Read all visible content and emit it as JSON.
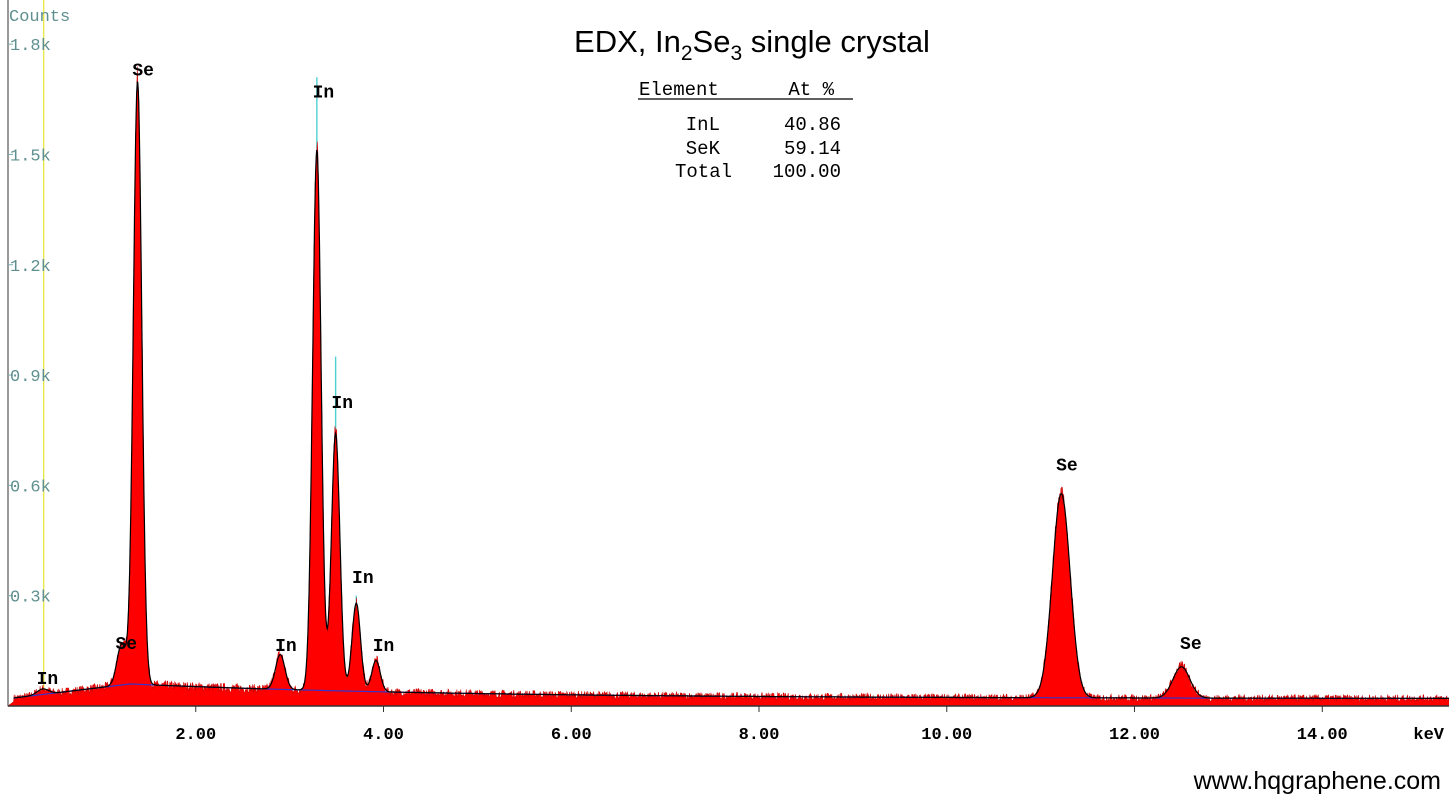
{
  "chart_data": {
    "type": "area",
    "title": "EDX, In2Se3 single crystal",
    "title_parts": {
      "a": "EDX, In",
      "s1": "2",
      "b": "Se",
      "s2": "3",
      "c": " single crystal"
    },
    "ylabel": "Counts",
    "xunit": "keV",
    "xlim": [
      0,
      15.35
    ],
    "ylim": [
      0,
      1920
    ],
    "y_ticks": [
      {
        "value": 300,
        "label": "0.3k"
      },
      {
        "value": 600,
        "label": "0.6k"
      },
      {
        "value": 900,
        "label": "0.9k"
      },
      {
        "value": 1200,
        "label": "1.2k"
      },
      {
        "value": 1500,
        "label": "1.5k"
      },
      {
        "value": 1800,
        "label": "1.8k"
      }
    ],
    "x_ticks": [
      {
        "value": 2,
        "label": "2.00"
      },
      {
        "value": 4,
        "label": "4.00"
      },
      {
        "value": 6,
        "label": "6.00"
      },
      {
        "value": 8,
        "label": "8.00"
      },
      {
        "value": 10,
        "label": "10.00"
      },
      {
        "value": 12,
        "label": "12.00"
      },
      {
        "value": 14,
        "label": "14.00"
      }
    ],
    "peaks": [
      {
        "label": "In",
        "x": 0.37,
        "height": 15,
        "width": 0.06
      },
      {
        "label": "Se",
        "x": 1.21,
        "height": 110,
        "width": 0.05
      },
      {
        "label": "Se",
        "x": 1.38,
        "height": 1640,
        "width": 0.045
      },
      {
        "label": "In",
        "x": 2.9,
        "height": 95,
        "width": 0.05
      },
      {
        "label": "In",
        "x": 3.29,
        "height": 1470,
        "width": 0.045
      },
      {
        "label": "In",
        "x": 3.49,
        "height": 700,
        "width": 0.045
      },
      {
        "label": "In",
        "x": 3.71,
        "height": 240,
        "width": 0.045
      },
      {
        "label": "In",
        "x": 3.92,
        "height": 85,
        "width": 0.045
      },
      {
        "label": "Se",
        "x": 11.22,
        "height": 555,
        "width": 0.095
      },
      {
        "label": "Se",
        "x": 12.5,
        "height": 85,
        "width": 0.09
      }
    ],
    "peak_labels": [
      {
        "text": "In",
        "x": 0.42,
        "y": 60
      },
      {
        "text": "Se",
        "x": 1.26,
        "y": 155
      },
      {
        "text": "Se",
        "x": 1.44,
        "y": 1715
      },
      {
        "text": "In",
        "x": 2.96,
        "y": 150
      },
      {
        "text": "In",
        "x": 3.36,
        "y": 1655
      },
      {
        "text": "In",
        "x": 3.56,
        "y": 810
      },
      {
        "text": "In",
        "x": 3.78,
        "y": 335
      },
      {
        "text": "In",
        "x": 4.0,
        "y": 150
      },
      {
        "text": "Se",
        "x": 11.28,
        "y": 640
      },
      {
        "text": "Se",
        "x": 12.6,
        "y": 155
      }
    ],
    "marker_lines": [
      {
        "x": 0.38,
        "y": 1920,
        "color": "#e8e84a"
      },
      {
        "x": 2.91,
        "y": 120,
        "color": "#4fd0d0"
      },
      {
        "x": 3.29,
        "y": 1710,
        "color": "#4fd0d0"
      },
      {
        "x": 3.49,
        "y": 950,
        "color": "#4fd0d0"
      },
      {
        "x": 3.71,
        "y": 300,
        "color": "#4fd0d0"
      },
      {
        "x": 3.92,
        "y": 120,
        "color": "#4fd0d0"
      }
    ],
    "background_counts": {
      "start": 20,
      "rise_to": 60,
      "rise_at": 1.3,
      "end": 20
    },
    "composition_table": {
      "headers": [
        "Element",
        "At %"
      ],
      "rows": [
        {
          "element": "InL",
          "value": "40.86"
        },
        {
          "element": "SeK",
          "value": "59.14"
        },
        {
          "element": "Total",
          "value": "100.00"
        }
      ]
    },
    "colors": {
      "fill": "#ff0000",
      "fit": "#000000",
      "baseline": "#3333cc",
      "axis": "#333333"
    }
  },
  "watermark": "www.hqgraphene.com"
}
